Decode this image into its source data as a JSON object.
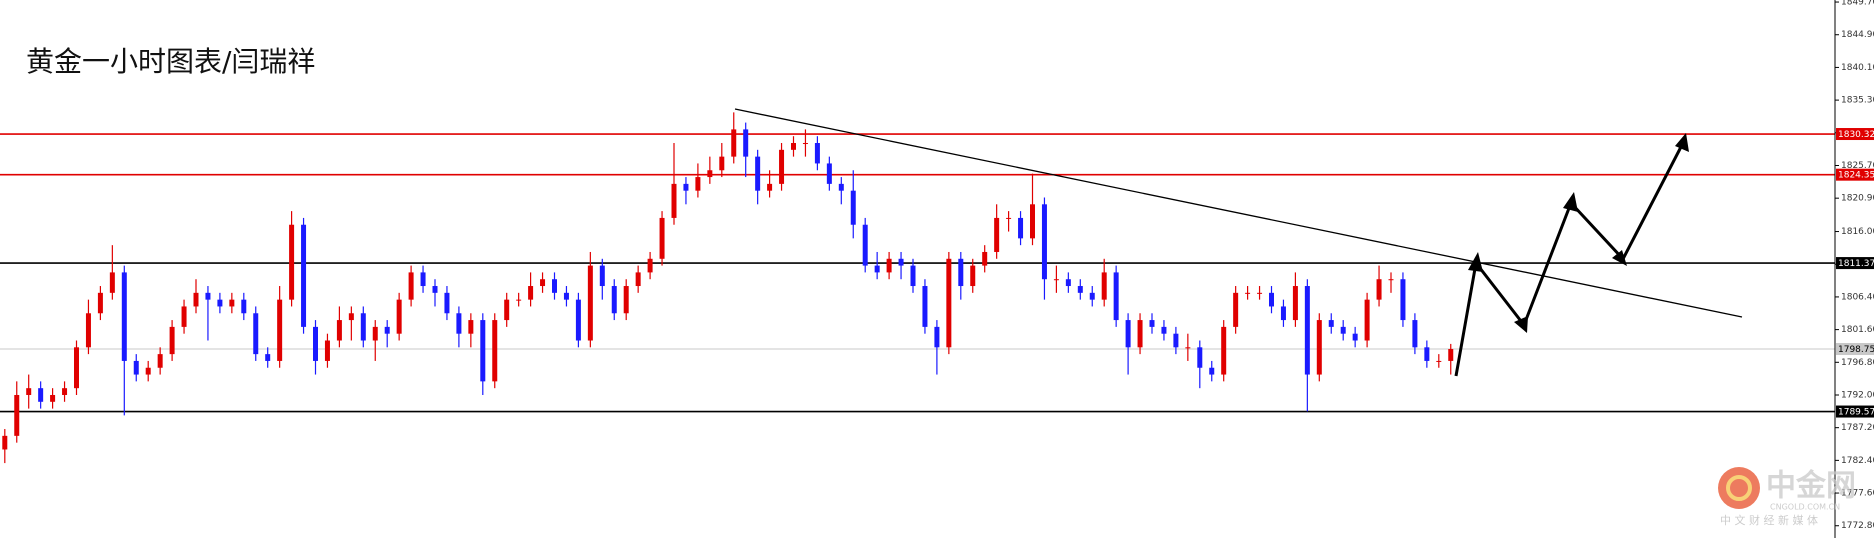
{
  "chart_data": {
    "type": "candlestick",
    "title": "黄金一小时图表/闫瑞祥",
    "up_color": "#e00000",
    "down_color": "#1a1aff",
    "ylim": [
      1771,
      1850
    ],
    "yticks": [
      {
        "value": 1849.7,
        "label": "1849.70"
      },
      {
        "value": 1844.9,
        "label": "1844.90"
      },
      {
        "value": 1840.1,
        "label": "1840.10"
      },
      {
        "value": 1835.3,
        "label": "1835.30"
      },
      {
        "value": 1830.5,
        "label": "1830.50"
      },
      {
        "value": 1825.7,
        "label": "1825.70"
      },
      {
        "value": 1820.9,
        "label": "1820.90"
      },
      {
        "value": 1816,
        "label": "1816.00"
      },
      {
        "value": 1811.2,
        "label": "1811.20"
      },
      {
        "value": 1806.4,
        "label": "1806.40"
      },
      {
        "value": 1801.6,
        "label": "1801.60"
      },
      {
        "value": 1796.8,
        "label": "1796.80"
      },
      {
        "value": 1792,
        "label": "1792.00"
      },
      {
        "value": 1787.2,
        "label": "1787.20"
      },
      {
        "value": 1782.4,
        "label": "1782.40"
      },
      {
        "value": 1777.6,
        "label": "1777.60"
      },
      {
        "value": 1772.8,
        "label": "1772.80"
      }
    ],
    "levels": [
      {
        "value": 1830.32,
        "color": "#e00000",
        "label_color": "#ffffff"
      },
      {
        "value": 1824.35,
        "color": "#e00000",
        "label_color": "#ffffff"
      },
      {
        "value": 1811.37,
        "color": "#000000",
        "label_color": "#ffffff"
      },
      {
        "value": 1798.75,
        "color": "#c8c8c8",
        "label_color": "#000000"
      },
      {
        "value": 1789.57,
        "color": "#000000",
        "label_color": "#ffffff"
      }
    ],
    "open": [
      1784,
      1786,
      1792,
      1793,
      1791,
      1792,
      1793,
      1799,
      1804,
      1807,
      1810,
      1797,
      1795,
      1796,
      1798,
      1802,
      1805,
      1807,
      1806,
      1805,
      1806,
      1804,
      1798,
      1797,
      1806,
      1817,
      1802,
      1797,
      1800,
      1803,
      1804,
      1800,
      1802,
      1801,
      1806,
      1810,
      1808,
      1807,
      1804,
      1801,
      1803,
      1794,
      1803,
      1806,
      1806,
      1808,
      1809,
      1807,
      1806,
      1800,
      1811,
      1808,
      1804,
      1808,
      1810,
      1812,
      1818,
      1823,
      1822,
      1824,
      1825,
      1827,
      1831,
      1827,
      1822,
      1823,
      1828,
      1829,
      1829,
      1826,
      1823,
      1822,
      1817,
      1811,
      1810,
      1812,
      1811,
      1808,
      1802,
      1799,
      1812,
      1808,
      1811,
      1813,
      1818,
      1818,
      1815,
      1820,
      1809,
      1809,
      1808,
      1807,
      1806,
      1810,
      1803,
      1799,
      1803,
      1802,
      1801,
      1799,
      1799,
      1796,
      1795,
      1802,
      1807,
      1807,
      1807,
      1805,
      1803,
      1808,
      1795,
      1803,
      1802,
      1801,
      1800,
      1806,
      1809,
      1809,
      1803,
      1799,
      1797,
      1797
    ],
    "high": [
      1787,
      1794,
      1795,
      1794,
      1793,
      1794,
      1800,
      1806,
      1808,
      1814,
      1811,
      1798,
      1797,
      1799,
      1803,
      1806,
      1809,
      1808,
      1807,
      1807,
      1807,
      1805,
      1799,
      1808,
      1819,
      1818,
      1803,
      1801,
      1805,
      1805,
      1805,
      1803,
      1803,
      1807,
      1811,
      1811,
      1809,
      1808,
      1805,
      1804,
      1804,
      1804,
      1807,
      1807,
      1810,
      1810,
      1810,
      1808,
      1807,
      1813,
      1812,
      1809,
      1809,
      1811,
      1813,
      1819,
      1829,
      1824,
      1826,
      1827,
      1829,
      1833.5,
      1832,
      1828,
      1825,
      1829,
      1830,
      1831,
      1830,
      1827,
      1824,
      1825,
      1818,
      1813,
      1813,
      1813,
      1812,
      1809,
      1803,
      1813,
      1813,
      1812,
      1814,
      1820,
      1819,
      1819,
      1824.5,
      1821,
      1811,
      1810,
      1809,
      1808,
      1812,
      1811,
      1804,
      1804,
      1804,
      1803,
      1802,
      1801,
      1800,
      1797,
      1803,
      1808,
      1808,
      1808,
      1808,
      1806,
      1810,
      1809,
      1804,
      1804,
      1803,
      1802,
      1807,
      1811,
      1810,
      1810,
      1804,
      1800,
      1798,
      1799.5
    ],
    "low": [
      1782,
      1785,
      1790,
      1790,
      1790,
      1791,
      1792,
      1798,
      1803,
      1806,
      1789,
      1794,
      1794,
      1795,
      1797,
      1801,
      1804,
      1800,
      1804,
      1804,
      1803,
      1797,
      1796,
      1796,
      1805,
      1801,
      1795,
      1796,
      1799,
      1800,
      1799,
      1797,
      1799,
      1800,
      1805,
      1807,
      1805,
      1803,
      1799,
      1799,
      1792,
      1793,
      1802,
      1805,
      1805,
      1807,
      1806,
      1805,
      1799,
      1799,
      1806,
      1803,
      1803,
      1807,
      1809,
      1811,
      1817,
      1820,
      1821,
      1823,
      1824,
      1826,
      1824,
      1820,
      1821,
      1822,
      1827,
      1827,
      1825,
      1822,
      1820,
      1815,
      1810,
      1809,
      1809,
      1809,
      1807,
      1801,
      1795,
      1798,
      1806,
      1807,
      1810,
      1812,
      1816,
      1814,
      1814,
      1806,
      1807,
      1807,
      1806,
      1805,
      1805,
      1802,
      1795,
      1798,
      1801,
      1800,
      1798,
      1797,
      1793,
      1794,
      1794,
      1801,
      1806,
      1806,
      1804,
      1802,
      1802,
      1789.6,
      1794,
      1801,
      1800,
      1799,
      1799,
      1805,
      1807,
      1802,
      1798,
      1796,
      1796,
      1795
    ],
    "close": [
      1786,
      1792,
      1793,
      1791,
      1792,
      1793,
      1799,
      1804,
      1807,
      1810,
      1797,
      1795,
      1796,
      1798,
      1802,
      1805,
      1807,
      1806,
      1805,
      1806,
      1804,
      1798,
      1797,
      1806,
      1817,
      1802,
      1797,
      1800,
      1803,
      1804,
      1800,
      1802,
      1801,
      1806,
      1810,
      1808,
      1807,
      1804,
      1801,
      1803,
      1794,
      1803,
      1806,
      1806,
      1808,
      1809,
      1807,
      1806,
      1800,
      1811,
      1808,
      1804,
      1808,
      1810,
      1812,
      1818,
      1823,
      1822,
      1824,
      1825,
      1827,
      1831,
      1827,
      1822,
      1823,
      1828,
      1829,
      1829,
      1826,
      1823,
      1822,
      1817,
      1811,
      1810,
      1812,
      1811,
      1808,
      1802,
      1799,
      1812,
      1808,
      1811,
      1813,
      1818,
      1818,
      1815,
      1820,
      1809,
      1809,
      1808,
      1807,
      1806,
      1810,
      1803,
      1799,
      1803,
      1802,
      1801,
      1799,
      1799,
      1796,
      1795,
      1802,
      1807,
      1807,
      1807,
      1805,
      1803,
      1808,
      1795,
      1803,
      1802,
      1801,
      1800,
      1806,
      1809,
      1809,
      1803,
      1799,
      1797,
      1797,
      1798.75
    ]
  },
  "watermark": {
    "brand": "中金网",
    "domain": "CNGOLD.COM.CN",
    "slogan": "中 文 财 经 新 媒 体"
  }
}
